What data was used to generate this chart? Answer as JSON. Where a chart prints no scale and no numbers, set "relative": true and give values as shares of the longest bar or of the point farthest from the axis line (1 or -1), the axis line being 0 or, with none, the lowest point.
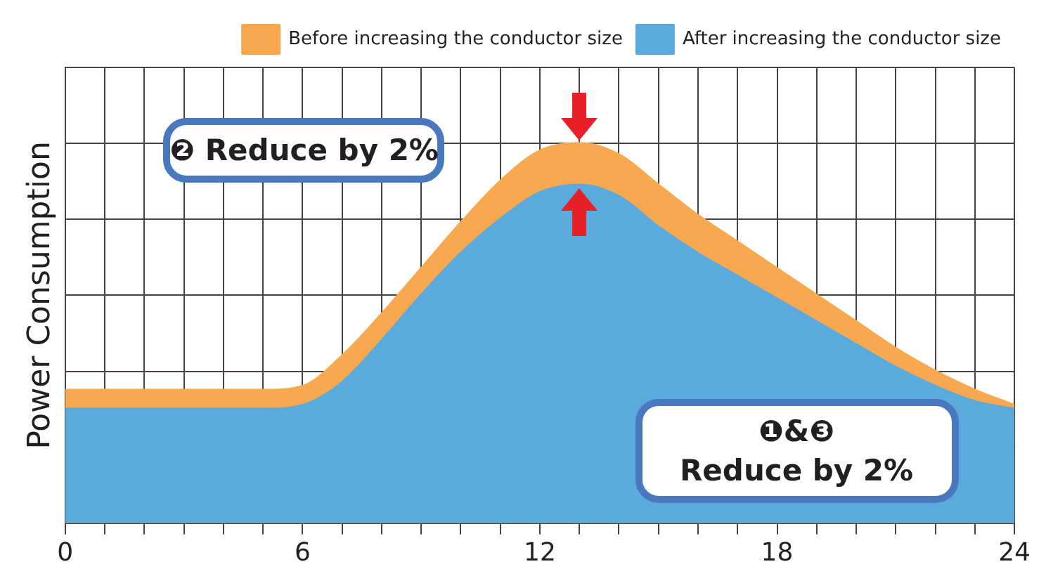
{
  "chart_data": {
    "type": "area",
    "relative": true,
    "ylabel": "Power Consumption",
    "x": [
      0,
      1,
      2,
      3,
      4,
      5,
      6,
      7,
      8,
      9,
      10,
      11,
      12,
      13,
      14,
      15,
      16,
      17,
      18,
      19,
      20,
      21,
      22,
      23,
      24
    ],
    "xlim": [
      0,
      24
    ],
    "xticks": [
      0,
      {
        "value": 1,
        "label": null
      },
      {
        "value": 2,
        "label": null
      },
      {
        "value": 3,
        "label": null
      },
      {
        "value": 4,
        "label": null
      },
      {
        "value": 5,
        "label": null
      },
      6,
      {
        "value": 7,
        "label": null
      },
      {
        "value": 8,
        "label": null
      },
      {
        "value": 9,
        "label": null
      },
      {
        "value": 10,
        "label": null
      },
      {
        "value": 11,
        "label": null
      },
      12,
      {
        "value": 13,
        "label": null
      },
      {
        "value": 14,
        "label": null
      },
      {
        "value": 15,
        "label": null
      },
      {
        "value": 16,
        "label": null
      },
      {
        "value": 17,
        "label": null
      },
      18,
      {
        "value": 19,
        "label": null
      },
      {
        "value": 20,
        "label": null
      },
      {
        "value": 21,
        "label": null
      },
      {
        "value": 22,
        "label": null
      },
      {
        "value": 23,
        "label": null
      },
      24
    ],
    "series": [
      {
        "name": "Before increasing the conductor size",
        "color": "#f8a94f",
        "values": [
          0.35,
          0.35,
          0.35,
          0.35,
          0.35,
          0.35,
          0.36,
          0.44,
          0.55,
          0.67,
          0.79,
          0.9,
          0.98,
          1,
          0.97,
          0.89,
          0.81,
          0.74,
          0.67,
          0.6,
          0.53,
          0.46,
          0.4,
          0.35,
          0.31
        ]
      },
      {
        "name": "After increasing the conductor size",
        "color": "#5aaade",
        "values": [
          0.3,
          0.3,
          0.3,
          0.3,
          0.3,
          0.3,
          0.31,
          0.37,
          0.48,
          0.6,
          0.71,
          0.8,
          0.87,
          0.89,
          0.86,
          0.78,
          0.71,
          0.65,
          0.59,
          0.53,
          0.47,
          0.41,
          0.36,
          0.32,
          0.3
        ]
      }
    ],
    "annotations": [
      "❷ Reduce by 2%",
      "❶&❸\nReduce by 2%"
    ],
    "grid": true,
    "legend": "top right",
    "marker": "none",
    "line_style": "solid"
  }
}
